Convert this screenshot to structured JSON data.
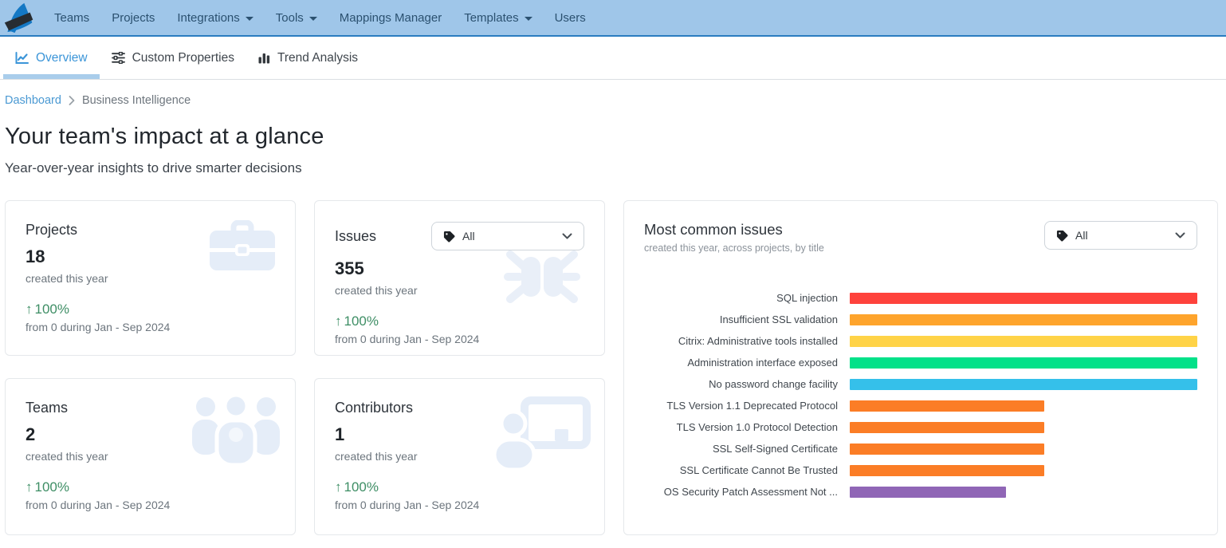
{
  "nav": {
    "items": [
      {
        "label": "Teams"
      },
      {
        "label": "Projects"
      },
      {
        "label": "Integrations",
        "dropdown": true
      },
      {
        "label": "Tools",
        "dropdown": true
      },
      {
        "label": "Mappings Manager"
      },
      {
        "label": "Templates",
        "dropdown": true
      },
      {
        "label": "Users"
      }
    ]
  },
  "tabs": [
    {
      "label": "Overview",
      "active": true
    },
    {
      "label": "Custom Properties",
      "active": false
    },
    {
      "label": "Trend Analysis",
      "active": false
    }
  ],
  "breadcrumb": {
    "link": "Dashboard",
    "current": "Business Intelligence"
  },
  "page": {
    "title": "Your team's impact at a glance",
    "subtitle": "Year-over-year insights to drive smarter decisions"
  },
  "stats_cards": [
    {
      "title": "Projects",
      "value": "18",
      "caption": "created this year",
      "delta_arrow": "↑",
      "delta": "100%",
      "note": "from 0 during Jan - Sep 2024",
      "icon": "briefcase-icon"
    },
    {
      "title": "Issues",
      "value": "355",
      "caption": "created this year",
      "delta_arrow": "↑",
      "delta": "100%",
      "note": "from 0 during Jan - Sep 2024",
      "icon": "bug-icon",
      "filter_label": "All"
    },
    {
      "title": "Teams",
      "value": "2",
      "caption": "created this year",
      "delta_arrow": "↑",
      "delta": "100%",
      "note": "from 0 during Jan - Sep 2024",
      "icon": "users-group-icon"
    },
    {
      "title": "Contributors",
      "value": "1",
      "caption": "created this year",
      "delta_arrow": "↑",
      "delta": "100%",
      "note": "from 0 during Jan - Sep 2024",
      "icon": "person-chalkboard-icon"
    }
  ],
  "chart_panel": {
    "title": "Most common issues",
    "subtitle": "created this year, across projects, by title",
    "filter_label": "All"
  },
  "chart_data": {
    "type": "bar",
    "orientation": "horizontal",
    "title": "Most common issues",
    "subtitle": "created this year, across projects, by title",
    "categories": [
      "SQL injection",
      "Insufficient SSL validation",
      "Citrix: Administrative tools installed",
      "Administration interface exposed",
      "No password change facility",
      "TLS Version 1.1 Deprecated Protocol",
      "TLS Version 1.0 Protocol Detection",
      "SSL Self-Signed Certificate",
      "SSL Certificate Cannot Be Trusted",
      "OS Security Patch Assessment Not ..."
    ],
    "values_pct_of_max": [
      100,
      100,
      100,
      100,
      100,
      56,
      56,
      56,
      56,
      45
    ],
    "colors": [
      "#fe423c",
      "#fea42c",
      "#ffd347",
      "#02e189",
      "#35c0ea",
      "#fb7d26",
      "#fb7d26",
      "#fb7d26",
      "#fb7d26",
      "#9066b6"
    ],
    "value_labels_shown": false,
    "axis_shown": false,
    "grid": false,
    "legend": false
  },
  "colors": {
    "navbar_bg": "#9fc6e9",
    "navbar_border": "#2a7cc0",
    "nav_text": "#2b5170",
    "active_tab": "#3b95d8",
    "tab_underline": "#a9cdeb",
    "link": "#4a99d3",
    "delta_green": "#3e8e65",
    "card_icon_light": "#e5edf8"
  }
}
